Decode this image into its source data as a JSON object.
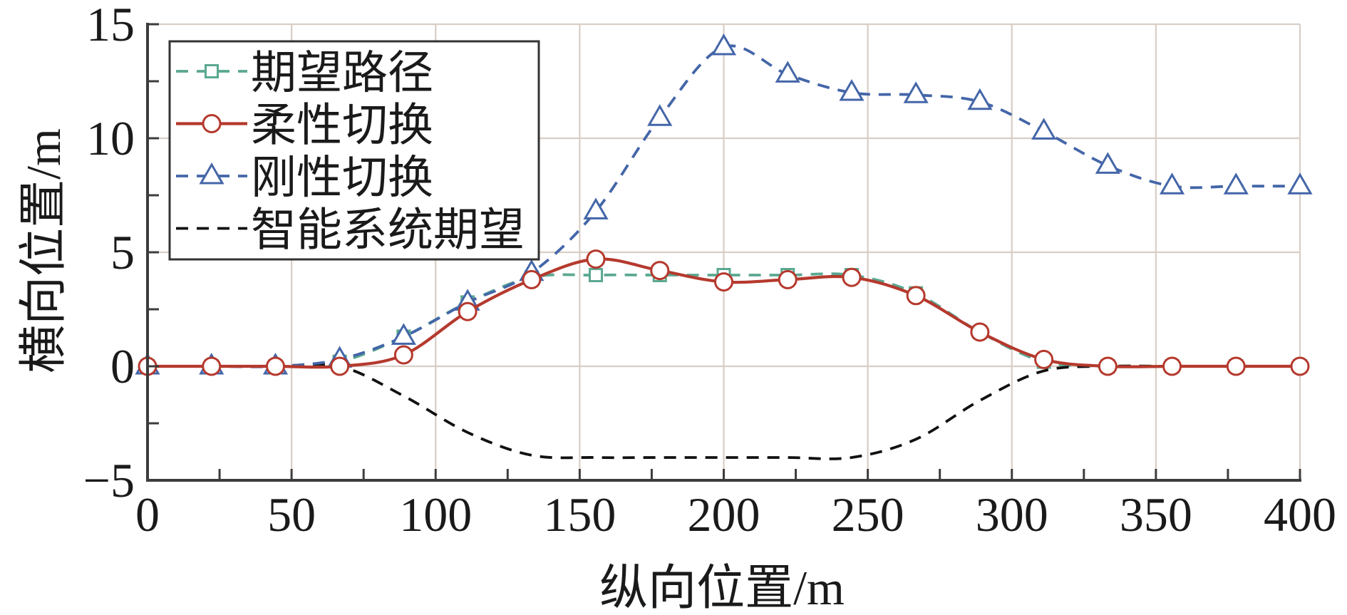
{
  "chart_data": {
    "type": "line",
    "x": [
      0,
      22.2,
      44.4,
      66.7,
      88.9,
      111.1,
      133.3,
      155.6,
      177.8,
      200,
      222.2,
      244.4,
      266.7,
      288.9,
      311.1,
      333.3,
      355.6,
      377.8,
      400
    ],
    "xlim": [
      0,
      400
    ],
    "ylim": [
      -5,
      15
    ],
    "xticks": [
      0,
      50,
      100,
      150,
      200,
      250,
      300,
      350,
      400
    ],
    "xtick_labels": [
      "0",
      "50",
      "100",
      "150",
      "200",
      "250",
      "300",
      "350",
      "400"
    ],
    "yticks": [
      -5,
      0,
      5,
      10,
      15
    ],
    "ytick_labels": [
      "−5",
      "0",
      "5",
      "10",
      "15"
    ],
    "x_minor_tick_step": 25,
    "y_minor_tick_step": 2.5,
    "xlabel": "纵向位置/m",
    "ylabel": "横向位置/m",
    "grid": true,
    "legend": {
      "placement": "top-left"
    },
    "series": [
      {
        "name": "期望路径",
        "color": "#5aa891",
        "line": "dashed",
        "marker": "square",
        "values": [
          0,
          0,
          0,
          0.2,
          1.3,
          2.8,
          3.9,
          4.0,
          4.0,
          4.0,
          4.0,
          4.0,
          3.2,
          1.5,
          0.2,
          0,
          0,
          0,
          0
        ]
      },
      {
        "name": "柔性切换",
        "color": "#b5392d",
        "line": "solid",
        "marker": "circle",
        "values": [
          0,
          0,
          0,
          0,
          0.5,
          2.4,
          3.8,
          4.7,
          4.2,
          3.7,
          3.8,
          3.9,
          3.1,
          1.5,
          0.3,
          0,
          0,
          0,
          0
        ]
      },
      {
        "name": "刚性切换",
        "color": "#4466a8",
        "line": "dashed",
        "marker": "triangle",
        "values": [
          0,
          0,
          0,
          0.3,
          1.3,
          2.8,
          4.1,
          6.8,
          10.9,
          14.0,
          12.8,
          12.0,
          11.9,
          11.6,
          10.3,
          8.8,
          7.9,
          7.9,
          7.9
        ]
      },
      {
        "name": "智能系统期望",
        "color": "#111111",
        "line": "dashed",
        "marker": "none",
        "values": [
          0,
          0,
          0,
          0,
          -1.3,
          -2.9,
          -3.9,
          -4.0,
          -4.0,
          -4.0,
          -4.0,
          -4.0,
          -3.2,
          -1.5,
          -0.2,
          0,
          0,
          0,
          0
        ]
      }
    ]
  }
}
